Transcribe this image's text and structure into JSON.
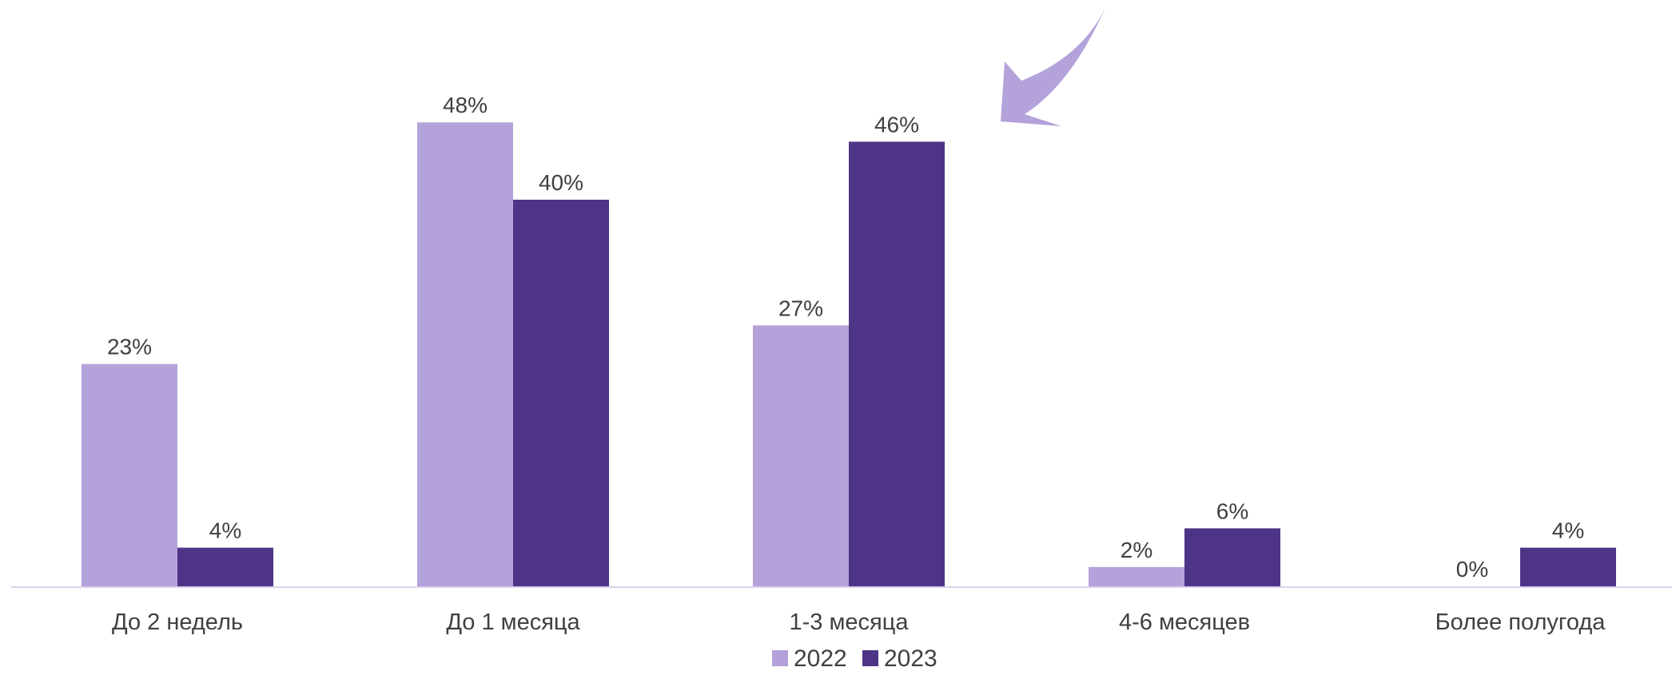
{
  "chart_data": {
    "type": "bar",
    "categories": [
      "До 2 недель",
      "До 1 месяца",
      "1-3 месяца",
      "4-6 месяцев",
      "Более полугода"
    ],
    "series": [
      {
        "name": "2022",
        "values": [
          23,
          48,
          27,
          2,
          0
        ],
        "labels": [
          "23%",
          "48%",
          "27%",
          "2%",
          "0%"
        ],
        "color": "#B4A2DA"
      },
      {
        "name": "2023",
        "values": [
          4,
          40,
          46,
          6,
          4
        ],
        "labels": [
          "4%",
          "40%",
          "46%",
          "6%",
          "4%"
        ],
        "color": "#4E3486"
      }
    ],
    "ylim": [
      0,
      50
    ],
    "grid": false,
    "legend_position": "bottom",
    "axis_color": "#D9D2EE",
    "annotation": {
      "type": "arrow",
      "points_to": "1-3 месяца",
      "color": "#B4A2DA"
    }
  }
}
